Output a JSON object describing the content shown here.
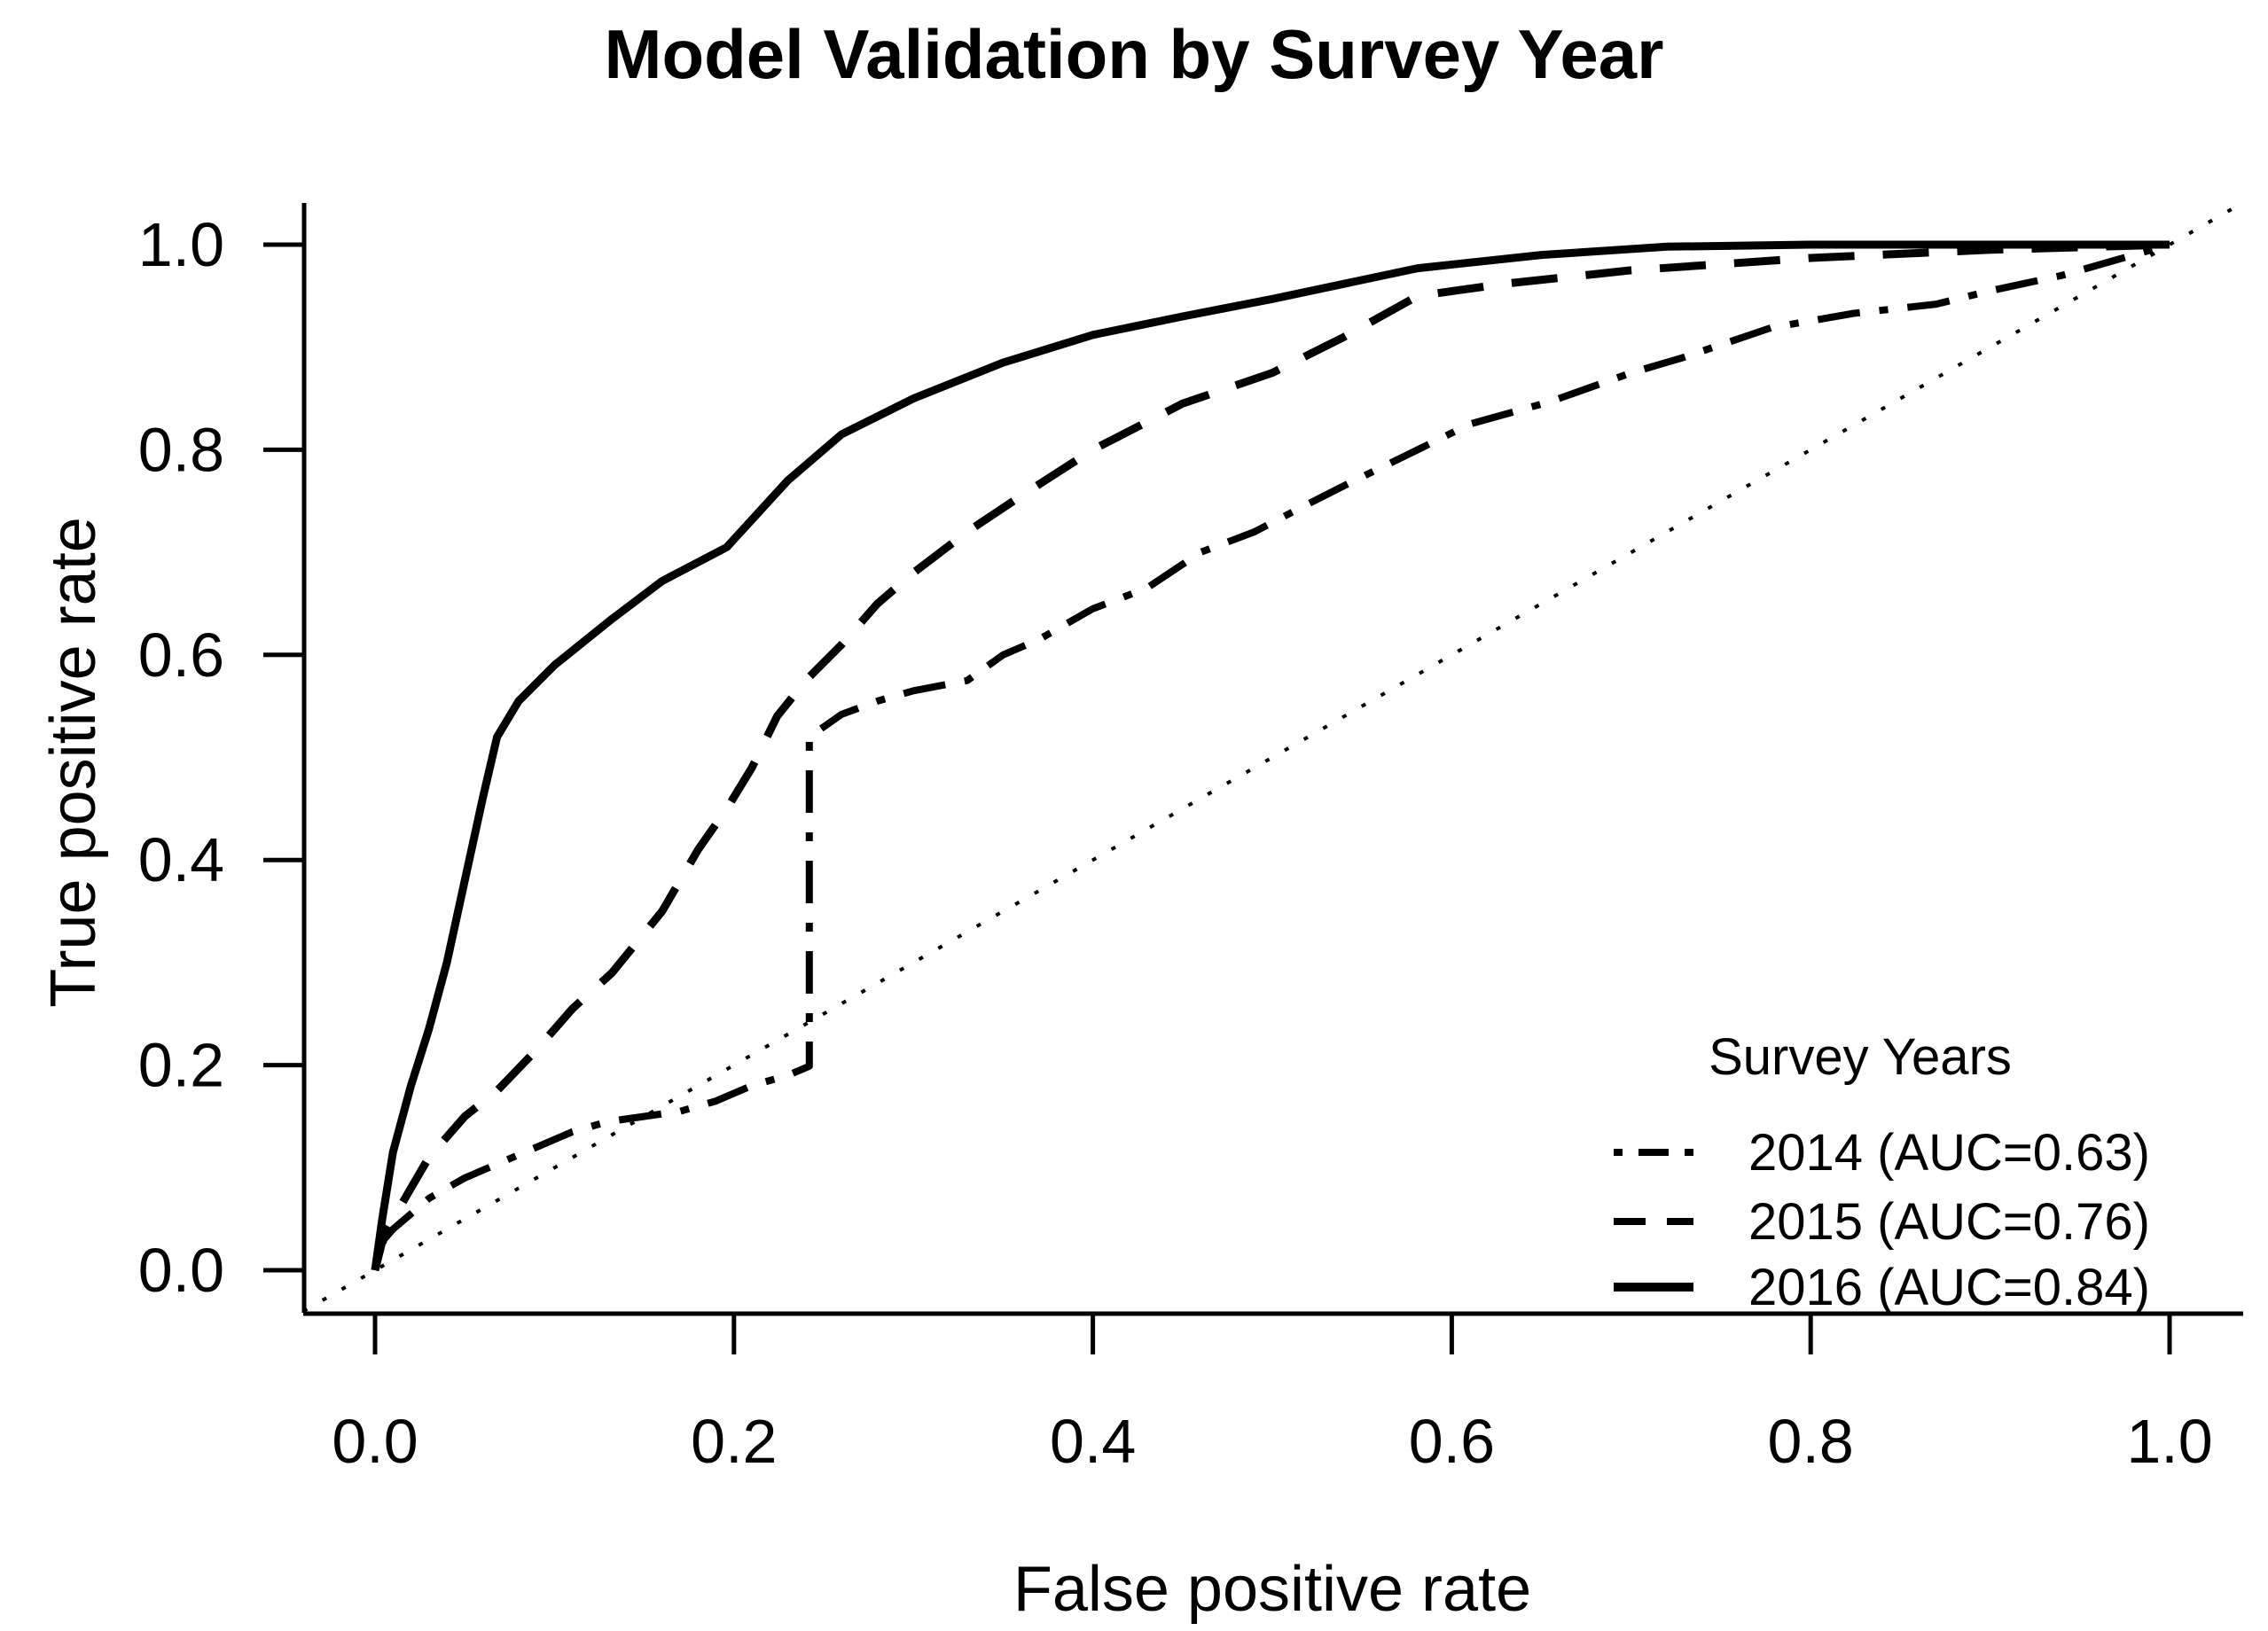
{
  "page": {
    "background": "#ffffff",
    "foreground": "#000000"
  },
  "chart_data": {
    "type": "line",
    "subtype": "roc-curves",
    "title": "Model Validation by Survey Year",
    "xlabel": "False positive rate",
    "ylabel": "True positive rate",
    "xlim": [
      0,
      1
    ],
    "ylim": [
      0,
      1
    ],
    "grid": "off",
    "x_tick_values": [
      0.0,
      0.2,
      0.4,
      0.6,
      0.8,
      1.0
    ],
    "x_tick_labels": [
      "0.0",
      "0.2",
      "0.4",
      "0.6",
      "0.8",
      "1.0"
    ],
    "y_tick_values": [
      0.0,
      0.2,
      0.4,
      0.6,
      0.8,
      1.0
    ],
    "y_tick_labels": [
      "0.0",
      "0.2",
      "0.4",
      "0.6",
      "0.8",
      "1.0"
    ],
    "reference_line": {
      "name": "chance-diagonal",
      "style": "dotted",
      "from": [
        -0.04,
        -0.04
      ],
      "to": [
        1.039,
        1.039
      ]
    },
    "legend": {
      "position": "lower-right",
      "title": "Survey Years",
      "entries": [
        {
          "label": "2014 (AUC=0.63)",
          "style": "dotdash"
        },
        {
          "label": "2015 (AUC=0.76)",
          "style": "dashed"
        },
        {
          "label": "2016 (AUC=0.84)",
          "style": "solid"
        }
      ]
    },
    "series": [
      {
        "name": "2014",
        "label": "2014 (AUC=0.63)",
        "auc": 0.63,
        "line_style": "dotdash",
        "color": "#000000",
        "points": [
          [
            0,
            0
          ],
          [
            0.005,
            0.03
          ],
          [
            0.01,
            0.04
          ],
          [
            0.02,
            0.055
          ],
          [
            0.03,
            0.07
          ],
          [
            0.05,
            0.09
          ],
          [
            0.07,
            0.105
          ],
          [
            0.09,
            0.12
          ],
          [
            0.11,
            0.135
          ],
          [
            0.13,
            0.145
          ],
          [
            0.15,
            0.15
          ],
          [
            0.17,
            0.155
          ],
          [
            0.19,
            0.165
          ],
          [
            0.21,
            0.18
          ],
          [
            0.23,
            0.19
          ],
          [
            0.242,
            0.199
          ],
          [
            0.242,
            0.52
          ],
          [
            0.26,
            0.542
          ],
          [
            0.28,
            0.555
          ],
          [
            0.3,
            0.565
          ],
          [
            0.33,
            0.575
          ],
          [
            0.35,
            0.6
          ],
          [
            0.37,
            0.615
          ],
          [
            0.4,
            0.645
          ],
          [
            0.43,
            0.665
          ],
          [
            0.46,
            0.7
          ],
          [
            0.49,
            0.72
          ],
          [
            0.512,
            0.74
          ],
          [
            0.54,
            0.765
          ],
          [
            0.581,
            0.8
          ],
          [
            0.61,
            0.825
          ],
          [
            0.655,
            0.847
          ],
          [
            0.7,
            0.875
          ],
          [
            0.729,
            0.89
          ],
          [
            0.778,
            0.919
          ],
          [
            0.824,
            0.933
          ],
          [
            0.87,
            0.942
          ],
          [
            0.9,
            0.955
          ],
          [
            0.94,
            0.97
          ],
          [
            0.97,
            0.985
          ],
          [
            1,
            1
          ]
        ]
      },
      {
        "name": "2015",
        "label": "2015 (AUC=0.76)",
        "auc": 0.76,
        "line_style": "dashed",
        "color": "#000000",
        "points": [
          [
            0,
            0
          ],
          [
            0.005,
            0.035
          ],
          [
            0.01,
            0.05
          ],
          [
            0.02,
            0.08
          ],
          [
            0.03,
            0.11
          ],
          [
            0.04,
            0.13
          ],
          [
            0.05,
            0.15
          ],
          [
            0.068,
            0.175
          ],
          [
            0.09,
            0.215
          ],
          [
            0.11,
            0.255
          ],
          [
            0.132,
            0.29
          ],
          [
            0.16,
            0.35
          ],
          [
            0.18,
            0.41
          ],
          [
            0.196,
            0.45
          ],
          [
            0.21,
            0.49
          ],
          [
            0.224,
            0.54
          ],
          [
            0.24,
            0.575
          ],
          [
            0.26,
            0.61
          ],
          [
            0.28,
            0.65
          ],
          [
            0.3,
            0.68
          ],
          [
            0.33,
            0.72
          ],
          [
            0.36,
            0.755
          ],
          [
            0.4,
            0.8
          ],
          [
            0.45,
            0.845
          ],
          [
            0.5,
            0.875
          ],
          [
            0.54,
            0.91
          ],
          [
            0.581,
            0.95
          ],
          [
            0.63,
            0.962
          ],
          [
            0.7,
            0.975
          ],
          [
            0.8,
            0.987
          ],
          [
            0.9,
            0.995
          ],
          [
            1,
            1
          ]
        ]
      },
      {
        "name": "2016",
        "label": "2016 (AUC=0.84)",
        "auc": 0.84,
        "line_style": "solid",
        "color": "#000000",
        "points": [
          [
            0,
            0
          ],
          [
            0.004,
            0.05
          ],
          [
            0.01,
            0.115
          ],
          [
            0.02,
            0.18
          ],
          [
            0.03,
            0.235
          ],
          [
            0.04,
            0.3
          ],
          [
            0.05,
            0.38
          ],
          [
            0.06,
            0.46
          ],
          [
            0.068,
            0.52
          ],
          [
            0.08,
            0.555
          ],
          [
            0.1,
            0.59
          ],
          [
            0.132,
            0.635
          ],
          [
            0.16,
            0.672
          ],
          [
            0.196,
            0.705
          ],
          [
            0.23,
            0.77
          ],
          [
            0.26,
            0.815
          ],
          [
            0.3,
            0.85
          ],
          [
            0.35,
            0.885
          ],
          [
            0.4,
            0.912
          ],
          [
            0.45,
            0.93
          ],
          [
            0.5,
            0.947
          ],
          [
            0.581,
            0.977
          ],
          [
            0.65,
            0.99
          ],
          [
            0.72,
            0.998
          ],
          [
            0.8,
            1
          ],
          [
            0.9,
            1
          ],
          [
            1,
            1
          ]
        ]
      }
    ]
  }
}
